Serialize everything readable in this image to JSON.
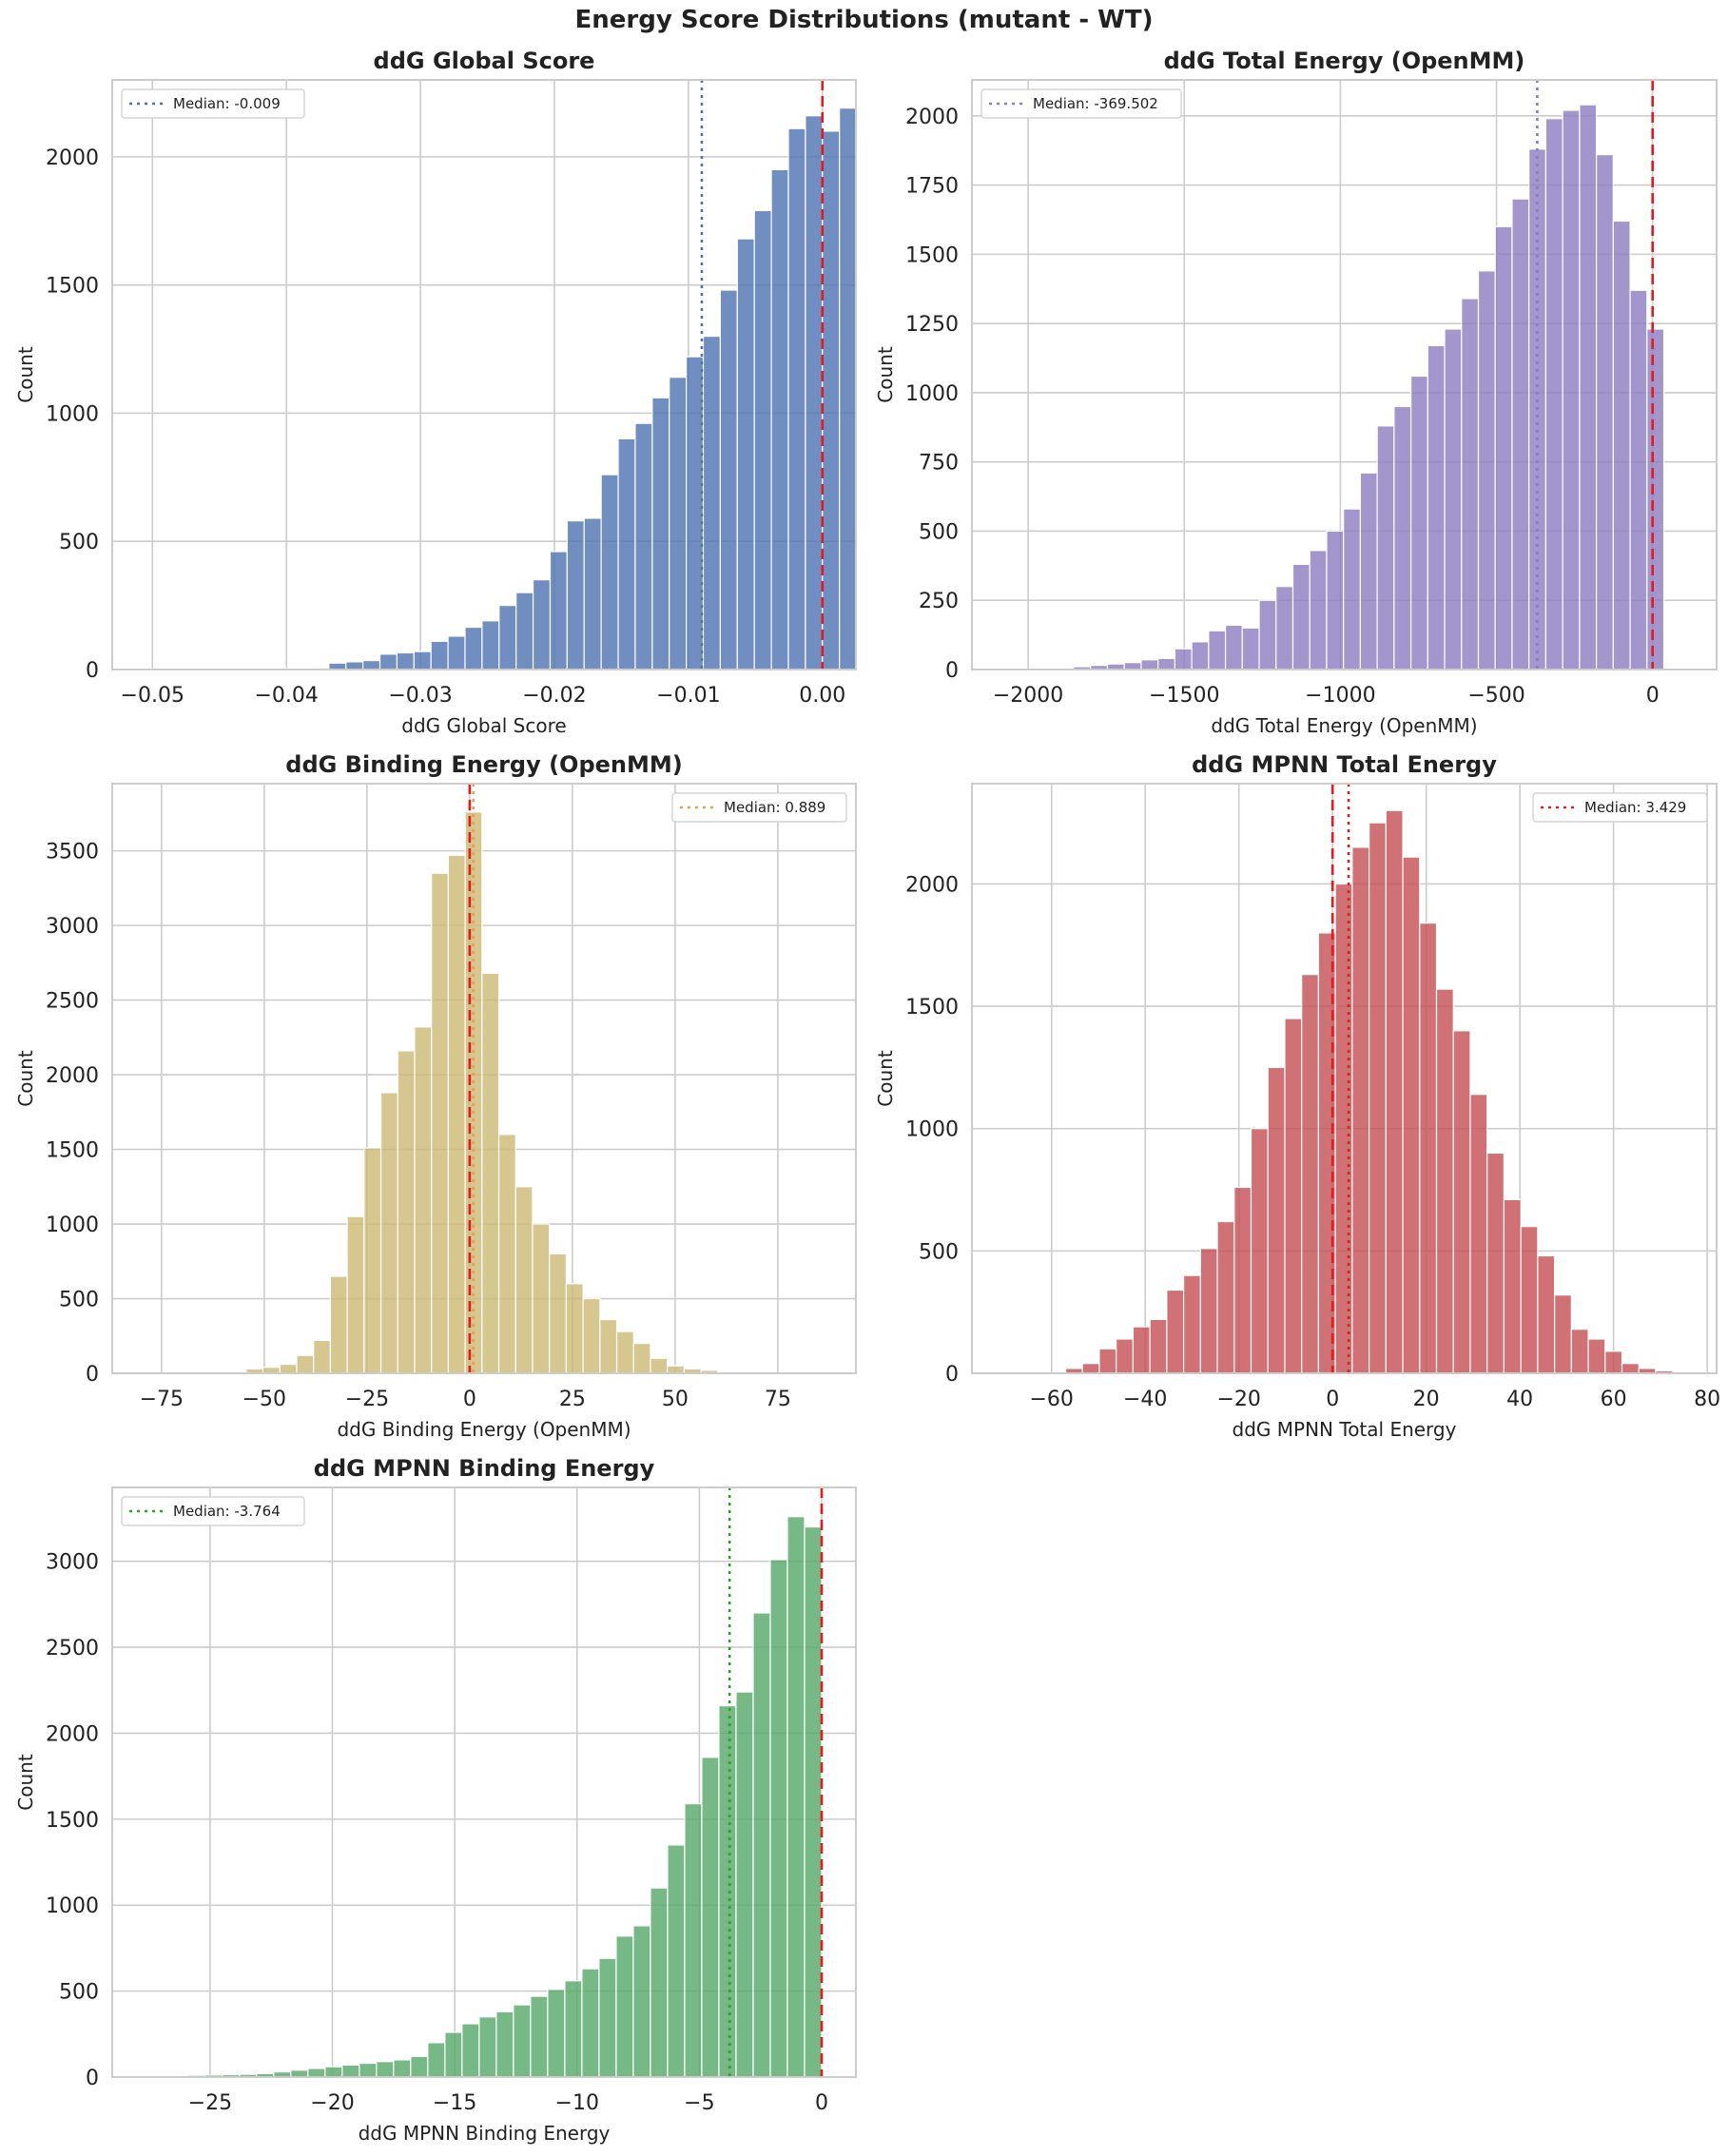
{
  "figure": {
    "suptitle": "Energy Score Distributions (mutant - WT)"
  },
  "colors": {
    "axes_edge": "#cccccc",
    "grid": "#cccccc",
    "zero_line": "#e41a1c",
    "text": "#222222"
  },
  "chart_data": [
    {
      "type": "bar",
      "title": "ddG Global Score",
      "xlabel": "ddG Global Score",
      "ylabel": "Count",
      "color": "#4c72b0",
      "xlim": [
        -0.053,
        0.0025
      ],
      "ylim": [
        0,
        2300
      ],
      "xticks": [
        -0.05,
        -0.04,
        -0.03,
        -0.02,
        -0.01,
        0.0
      ],
      "xtick_labels": [
        "−0.05",
        "−0.04",
        "−0.03",
        "−0.02",
        "−0.01",
        "0.00"
      ],
      "yticks": [
        0,
        500,
        1000,
        1500,
        2000
      ],
      "ytick_labels": [
        "0",
        "500",
        "1000",
        "1500",
        "2000"
      ],
      "bin_start": -0.0508,
      "bin_width": 0.00127,
      "counts": [
        3,
        3,
        3,
        3,
        3,
        3,
        4,
        4,
        4,
        5,
        6,
        25,
        30,
        35,
        60,
        65,
        70,
        110,
        130,
        165,
        190,
        250,
        300,
        350,
        460,
        580,
        590,
        760,
        900,
        960,
        1060,
        1140,
        1220,
        1300,
        1480,
        1680,
        1790,
        1950,
        2110,
        2160,
        2100,
        2190
      ],
      "median": -0.009,
      "legend": "Median: -0.009",
      "legend_loc": "upper-left",
      "median_color": "#4c72b0"
    },
    {
      "type": "bar",
      "title": "ddG Total Energy (OpenMM)",
      "xlabel": "ddG Total Energy (OpenMM)",
      "ylabel": "Count",
      "color": "#8c7cc0",
      "xlim": [
        -2180,
        205
      ],
      "ylim": [
        0,
        2130
      ],
      "xticks": [
        -2000,
        -1500,
        -1000,
        -500,
        0
      ],
      "xtick_labels": [
        "−2000",
        "−1500",
        "−1000",
        "−500",
        "0"
      ],
      "yticks": [
        0,
        250,
        500,
        750,
        1000,
        1250,
        1500,
        1750,
        2000
      ],
      "ytick_labels": [
        "0",
        "250",
        "500",
        "750",
        "1000",
        "1250",
        "1500",
        "1750",
        "2000"
      ],
      "bin_start": -2070,
      "bin_width": 54,
      "counts": [
        1,
        1,
        1,
        1,
        10,
        15,
        20,
        25,
        35,
        40,
        75,
        100,
        140,
        160,
        150,
        250,
        300,
        380,
        430,
        500,
        580,
        710,
        880,
        950,
        1060,
        1170,
        1230,
        1340,
        1440,
        1600,
        1700,
        1880,
        1990,
        2020,
        2040,
        1860,
        1620,
        1370,
        1230
      ],
      "median": -369.502,
      "legend": "Median: -369.502",
      "legend_loc": "upper-left",
      "median_color": "#8c7cc0"
    },
    {
      "type": "bar",
      "title": "ddG Binding Energy (OpenMM)",
      "xlabel": "ddG Binding Energy (OpenMM)",
      "ylabel": "Count",
      "color": "#ccb974",
      "xlim": [
        -87,
        94
      ],
      "ylim": [
        0,
        3950
      ],
      "xticks": [
        -75,
        -50,
        -25,
        0,
        25,
        50,
        75
      ],
      "xtick_labels": [
        "−75",
        "−50",
        "−25",
        "0",
        "25",
        "50",
        "75"
      ],
      "yticks": [
        0,
        500,
        1000,
        1500,
        2000,
        2500,
        3000,
        3500
      ],
      "ytick_labels": [
        "0",
        "500",
        "1000",
        "1500",
        "2000",
        "2500",
        "3000",
        "3500"
      ],
      "bin_start": -79,
      "bin_width": 4.1,
      "counts": [
        1,
        1,
        1,
        2,
        3,
        4,
        30,
        40,
        60,
        120,
        220,
        650,
        1050,
        1510,
        1880,
        2160,
        2320,
        3350,
        3470,
        3760,
        2680,
        1600,
        1250,
        1000,
        800,
        600,
        500,
        360,
        280,
        200,
        100,
        50,
        30,
        20,
        10,
        3,
        2,
        1
      ],
      "median": 0.889,
      "legend": "Median: 0.889",
      "legend_loc": "upper-right",
      "median_color": "#e6a04e"
    },
    {
      "type": "bar",
      "title": "ddG MPNN Total Energy",
      "xlabel": "ddG MPNN Total Energy",
      "ylabel": "Count",
      "color": "#c44e52",
      "xlim": [
        -77,
        82
      ],
      "ylim": [
        0,
        2410
      ],
      "xticks": [
        -60,
        -40,
        -20,
        0,
        20,
        40,
        60,
        80
      ],
      "xtick_labels": [
        "−60",
        "−40",
        "−20",
        "0",
        "20",
        "40",
        "60",
        "80"
      ],
      "yticks": [
        0,
        500,
        1000,
        1500,
        2000
      ],
      "ytick_labels": [
        "0",
        "500",
        "1000",
        "1500",
        "2000"
      ],
      "bin_start": -71.4,
      "bin_width": 3.6,
      "counts": [
        1,
        1,
        1,
        2,
        20,
        40,
        100,
        140,
        190,
        220,
        340,
        400,
        510,
        620,
        760,
        1000,
        1250,
        1450,
        1630,
        1800,
        2000,
        2150,
        2250,
        2300,
        2110,
        1840,
        1570,
        1400,
        1140,
        900,
        710,
        600,
        480,
        320,
        180,
        140,
        90,
        40,
        20,
        10,
        1
      ],
      "median": 3.429,
      "legend": "Median: 3.429",
      "legend_loc": "upper-right",
      "median_color": "#e41a1c"
    },
    {
      "type": "bar",
      "title": "ddG MPNN Binding Energy",
      "xlabel": "ddG MPNN Binding Energy",
      "ylabel": "Count",
      "color": "#55a868",
      "xlim": [
        -29,
        1.4
      ],
      "ylim": [
        0,
        3430
      ],
      "xticks": [
        -25,
        -20,
        -15,
        -10,
        -5,
        0
      ],
      "xtick_labels": [
        "−25",
        "−20",
        "−15",
        "−10",
        "−5",
        "0"
      ],
      "yticks": [
        0,
        500,
        1000,
        1500,
        2000,
        2500,
        3000
      ],
      "ytick_labels": [
        "0",
        "500",
        "1000",
        "1500",
        "2000",
        "2500",
        "3000"
      ],
      "bin_start": -28.7,
      "bin_width": 0.7,
      "counts": [
        1,
        1,
        1,
        1,
        10,
        12,
        14,
        16,
        20,
        30,
        40,
        50,
        60,
        70,
        80,
        90,
        100,
        120,
        200,
        260,
        310,
        350,
        380,
        420,
        470,
        510,
        560,
        630,
        690,
        820,
        880,
        1100,
        1350,
        1590,
        1860,
        2160,
        2240,
        2700,
        3010,
        3260,
        3200
      ],
      "median": -3.764,
      "legend": "Median: -3.764",
      "legend_loc": "upper-left",
      "median_color": "#2ca02c"
    }
  ]
}
